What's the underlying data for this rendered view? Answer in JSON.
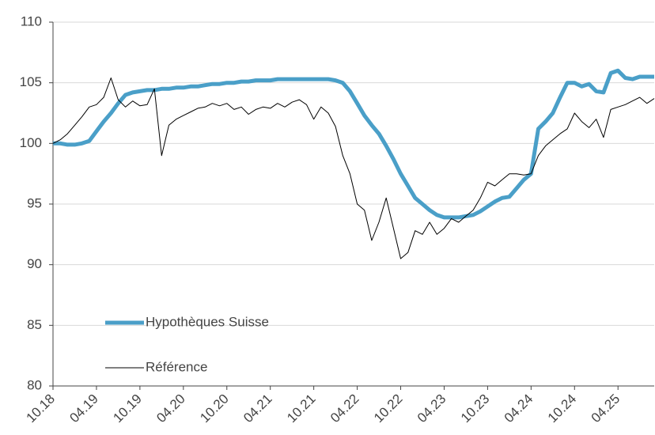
{
  "chart_data": {
    "type": "line",
    "categories": [
      "10.18",
      null,
      null,
      null,
      null,
      null,
      "04.19",
      null,
      null,
      null,
      null,
      null,
      "10.19",
      null,
      null,
      null,
      null,
      null,
      "04.20",
      null,
      null,
      null,
      null,
      null,
      "10.20",
      null,
      null,
      null,
      null,
      null,
      "04.21",
      null,
      null,
      null,
      null,
      null,
      "10.21",
      null,
      null,
      null,
      null,
      null,
      "04.22",
      null,
      null,
      null,
      null,
      null,
      "10.22",
      null,
      null,
      null,
      null,
      null,
      "04.23",
      null,
      null,
      null,
      null,
      null,
      "10.23",
      null,
      null,
      null,
      null,
      null,
      "04.24",
      null,
      null,
      null,
      null,
      null,
      "10.24",
      null,
      null,
      null,
      null,
      null,
      "04.25",
      null,
      null,
      null,
      null,
      null
    ],
    "series": [
      {
        "name": "Hypothèques Suisse",
        "color": "#4a9fc8",
        "width": 5,
        "values": [
          100,
          100,
          99.9,
          99.9,
          100,
          100.2,
          101,
          101.8,
          102.5,
          103.3,
          104,
          104.2,
          104.3,
          104.4,
          104.4,
          104.5,
          104.5,
          104.6,
          104.6,
          104.7,
          104.7,
          104.8,
          104.9,
          104.9,
          105,
          105,
          105.1,
          105.1,
          105.2,
          105.2,
          105.2,
          105.3,
          105.3,
          105.3,
          105.3,
          105.3,
          105.3,
          105.3,
          105.3,
          105.2,
          105,
          104.3,
          103.3,
          102.3,
          101.5,
          100.8,
          99.8,
          98.7,
          97.5,
          96.5,
          95.5,
          95,
          94.5,
          94.1,
          93.9,
          93.9,
          93.9,
          94,
          94.1,
          94.4,
          94.8,
          95.2,
          95.5,
          95.6,
          96.3,
          97,
          97.5,
          101.2,
          101.8,
          102.5,
          103.8,
          105,
          105,
          104.7,
          104.9,
          104.3,
          104.2,
          105.8,
          106,
          105.4,
          105.3,
          105.5,
          105.5,
          105.5
        ]
      },
      {
        "name": "Référence",
        "color": "#000000",
        "width": 1,
        "values": [
          100,
          100.3,
          100.8,
          101.5,
          102.2,
          103,
          103.2,
          103.8,
          105.4,
          103.6,
          103,
          103.5,
          103.1,
          103.2,
          104.5,
          99,
          101.5,
          102,
          102.3,
          102.6,
          102.9,
          103,
          103.3,
          103.1,
          103.3,
          102.8,
          103,
          102.4,
          102.8,
          103,
          102.9,
          103.3,
          103,
          103.4,
          103.6,
          103.2,
          102,
          103,
          102.5,
          101.4,
          99,
          97.5,
          95,
          94.5,
          92,
          93.5,
          95.5,
          93,
          90.5,
          91,
          92.8,
          92.5,
          93.5,
          92.5,
          93,
          93.8,
          93.5,
          94,
          94.5,
          95.5,
          96.8,
          96.5,
          97,
          97.5,
          97.5,
          97.4,
          97.5,
          99,
          99.8,
          100.3,
          100.8,
          101.2,
          102.5,
          101.8,
          101.3,
          102,
          100.5,
          102.8,
          103,
          103.2,
          103.5,
          103.8,
          103.3,
          103.7
        ]
      }
    ],
    "ylim": [
      80,
      110
    ],
    "yticks": [
      80,
      85,
      90,
      95,
      100,
      105,
      110
    ],
    "grid": true,
    "legend": "lower left"
  }
}
